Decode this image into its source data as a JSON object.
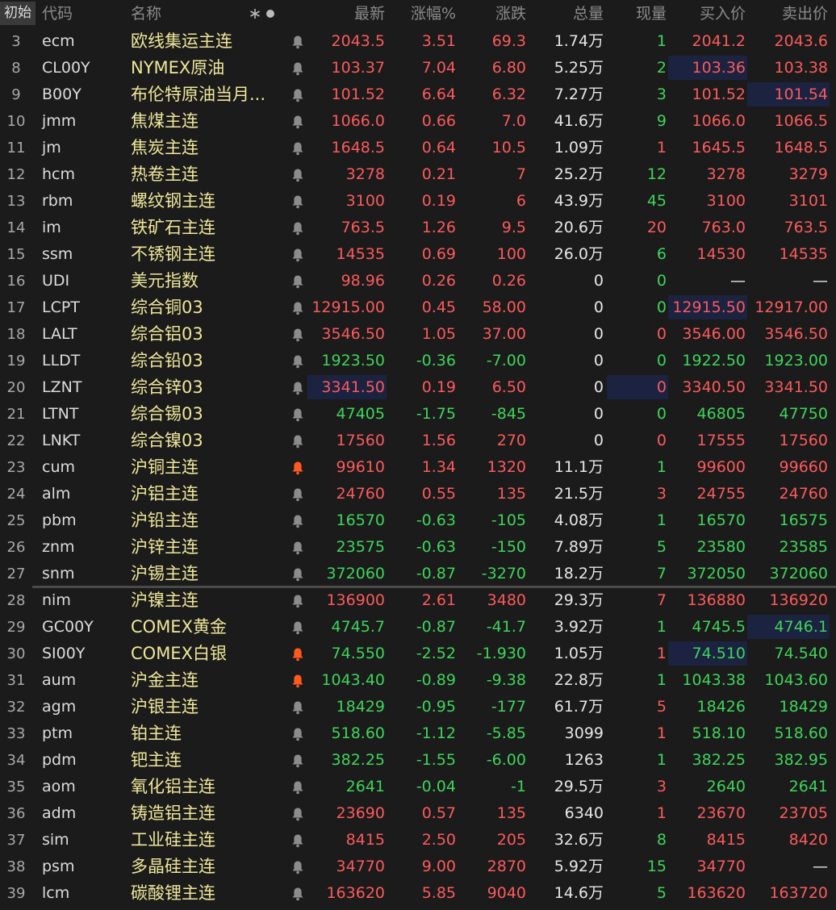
{
  "header": {
    "button": "初始",
    "columns": [
      "代码",
      "名称",
      "最新",
      "涨幅%",
      "涨跌",
      "总量",
      "现量",
      "买入价",
      "卖出价"
    ]
  },
  "rows": [
    {
      "index": "3",
      "code": "ecm",
      "name": "欧线集运主连",
      "last": "2043.5",
      "pct": "3.51",
      "chg": "69.3",
      "vol": "1.74万",
      "cur": "1",
      "bid": "2041.2",
      "ask": "2043.6",
      "color": "#fb5a5c",
      "cur_color": "#3ed45a",
      "alert": false,
      "highlight": []
    },
    {
      "index": "8",
      "code": "CL00Y",
      "name": "NYMEX原油",
      "last": "103.37",
      "pct": "7.04",
      "chg": "6.80",
      "vol": "5.25万",
      "cur": "2",
      "bid": "103.36",
      "ask": "103.38",
      "color": "#fb5a5c",
      "cur_color": "#3ed45a",
      "alert": false,
      "highlight": [
        "bid"
      ]
    },
    {
      "index": "9",
      "code": "B00Y",
      "name": "布伦特原油当月...",
      "last": "101.52",
      "pct": "6.64",
      "chg": "6.32",
      "vol": "7.27万",
      "cur": "3",
      "bid": "101.52",
      "ask": "101.54",
      "color": "#fb5a5c",
      "cur_color": "#3ed45a",
      "alert": false,
      "highlight": [
        "ask"
      ]
    },
    {
      "index": "10",
      "code": "jmm",
      "name": "焦煤主连",
      "last": "1066.0",
      "pct": "0.66",
      "chg": "7.0",
      "vol": "41.6万",
      "cur": "9",
      "bid": "1066.0",
      "ask": "1066.5",
      "color": "#fb5a5c",
      "cur_color": "#3ed45a",
      "alert": false,
      "highlight": []
    },
    {
      "index": "11",
      "code": "jm",
      "name": "焦炭主连",
      "last": "1648.5",
      "pct": "0.64",
      "chg": "10.5",
      "vol": "1.09万",
      "cur": "1",
      "bid": "1645.5",
      "ask": "1648.5",
      "color": "#fb5a5c",
      "cur_color": "#fb5a5c",
      "alert": false,
      "highlight": []
    },
    {
      "index": "12",
      "code": "hcm",
      "name": "热卷主连",
      "last": "3278",
      "pct": "0.21",
      "chg": "7",
      "vol": "25.2万",
      "cur": "12",
      "bid": "3278",
      "ask": "3279",
      "color": "#fb5a5c",
      "cur_color": "#3ed45a",
      "alert": false,
      "highlight": []
    },
    {
      "index": "13",
      "code": "rbm",
      "name": "螺纹钢主连",
      "last": "3100",
      "pct": "0.19",
      "chg": "6",
      "vol": "43.9万",
      "cur": "45",
      "bid": "3100",
      "ask": "3101",
      "color": "#fb5a5c",
      "cur_color": "#3ed45a",
      "alert": false,
      "highlight": []
    },
    {
      "index": "14",
      "code": "im",
      "name": "铁矿石主连",
      "last": "763.5",
      "pct": "1.26",
      "chg": "9.5",
      "vol": "20.6万",
      "cur": "20",
      "bid": "763.0",
      "ask": "763.5",
      "color": "#fb5a5c",
      "cur_color": "#fb5a5c",
      "alert": false,
      "highlight": []
    },
    {
      "index": "15",
      "code": "ssm",
      "name": "不锈钢主连",
      "last": "14535",
      "pct": "0.69",
      "chg": "100",
      "vol": "26.0万",
      "cur": "6",
      "bid": "14530",
      "ask": "14535",
      "color": "#fb5a5c",
      "cur_color": "#3ed45a",
      "alert": false,
      "highlight": []
    },
    {
      "index": "16",
      "code": "UDI",
      "name": "美元指数",
      "last": "98.96",
      "pct": "0.26",
      "chg": "0.26",
      "vol": "0",
      "cur": "0",
      "bid": "—",
      "ask": "—",
      "color": "#fb5a5c",
      "cur_color": "#3ed45a",
      "alert": false,
      "highlight": []
    },
    {
      "index": "17",
      "code": "LCPT",
      "name": "综合铜03",
      "last": "12915.00",
      "pct": "0.45",
      "chg": "58.00",
      "vol": "0",
      "cur": "0",
      "bid": "12915.50",
      "ask": "12917.00",
      "color": "#fb5a5c",
      "cur_color": "#3ed45a",
      "alert": false,
      "highlight": [
        "bid"
      ]
    },
    {
      "index": "18",
      "code": "LALT",
      "name": "综合铝03",
      "last": "3546.50",
      "pct": "1.05",
      "chg": "37.00",
      "vol": "0",
      "cur": "0",
      "bid": "3546.00",
      "ask": "3546.50",
      "color": "#fb5a5c",
      "cur_color": "#fb5a5c",
      "alert": false,
      "highlight": []
    },
    {
      "index": "19",
      "code": "LLDT",
      "name": "综合铅03",
      "last": "1923.50",
      "pct": "-0.36",
      "chg": "-7.00",
      "vol": "0",
      "cur": "0",
      "bid": "1922.50",
      "ask": "1923.00",
      "color": "#3ed45a",
      "cur_color": "#3ed45a",
      "alert": false,
      "highlight": []
    },
    {
      "index": "20",
      "code": "LZNT",
      "name": "综合锌03",
      "last": "3341.50",
      "pct": "0.19",
      "chg": "6.50",
      "vol": "0",
      "cur": "0",
      "bid": "3340.50",
      "ask": "3341.50",
      "color": "#fb5a5c",
      "cur_color": "#fb5a5c",
      "alert": false,
      "highlight": [
        "last",
        "cur"
      ]
    },
    {
      "index": "21",
      "code": "LTNT",
      "name": "综合锡03",
      "last": "47405",
      "pct": "-1.75",
      "chg": "-845",
      "vol": "0",
      "cur": "0",
      "bid": "46805",
      "ask": "47750",
      "color": "#3ed45a",
      "cur_color": "#3ed45a",
      "alert": false,
      "highlight": []
    },
    {
      "index": "22",
      "code": "LNKT",
      "name": "综合镍03",
      "last": "17560",
      "pct": "1.56",
      "chg": "270",
      "vol": "0",
      "cur": "0",
      "bid": "17555",
      "ask": "17560",
      "color": "#fb5a5c",
      "cur_color": "#fb5a5c",
      "alert": false,
      "highlight": []
    },
    {
      "index": "23",
      "code": "cum",
      "name": "沪铜主连",
      "last": "99610",
      "pct": "1.34",
      "chg": "1320",
      "vol": "11.1万",
      "cur": "1",
      "bid": "99600",
      "ask": "99660",
      "color": "#fb5a5c",
      "cur_color": "#3ed45a",
      "alert": true,
      "highlight": []
    },
    {
      "index": "24",
      "code": "alm",
      "name": "沪铝主连",
      "last": "24760",
      "pct": "0.55",
      "chg": "135",
      "vol": "21.5万",
      "cur": "3",
      "bid": "24755",
      "ask": "24760",
      "color": "#fb5a5c",
      "cur_color": "#fb5a5c",
      "alert": false,
      "highlight": []
    },
    {
      "index": "25",
      "code": "pbm",
      "name": "沪铅主连",
      "last": "16570",
      "pct": "-0.63",
      "chg": "-105",
      "vol": "4.08万",
      "cur": "1",
      "bid": "16570",
      "ask": "16575",
      "color": "#3ed45a",
      "cur_color": "#3ed45a",
      "alert": false,
      "highlight": []
    },
    {
      "index": "26",
      "code": "znm",
      "name": "沪锌主连",
      "last": "23575",
      "pct": "-0.63",
      "chg": "-150",
      "vol": "7.89万",
      "cur": "5",
      "bid": "23580",
      "ask": "23585",
      "color": "#3ed45a",
      "cur_color": "#3ed45a",
      "alert": false,
      "highlight": []
    },
    {
      "index": "27",
      "code": "snm",
      "name": "沪锡主连",
      "last": "372060",
      "pct": "-0.87",
      "chg": "-3270",
      "vol": "18.2万",
      "cur": "7",
      "bid": "372050",
      "ask": "372060",
      "color": "#3ed45a",
      "cur_color": "#3ed45a",
      "alert": false,
      "highlight": []
    },
    {
      "index": "28",
      "code": "nim",
      "name": "沪镍主连",
      "last": "136900",
      "pct": "2.61",
      "chg": "3480",
      "vol": "29.3万",
      "cur": "7",
      "bid": "136880",
      "ask": "136920",
      "color": "#fb5a5c",
      "cur_color": "#fb5a5c",
      "alert": false,
      "highlight": []
    },
    {
      "index": "29",
      "code": "GC00Y",
      "name": "COMEX黄金",
      "last": "4745.7",
      "pct": "-0.87",
      "chg": "-41.7",
      "vol": "3.92万",
      "cur": "1",
      "bid": "4745.5",
      "ask": "4746.1",
      "color": "#3ed45a",
      "cur_color": "#3ed45a",
      "alert": false,
      "highlight": [
        "ask"
      ]
    },
    {
      "index": "30",
      "code": "SI00Y",
      "name": "COMEX白银",
      "last": "74.550",
      "pct": "-2.52",
      "chg": "-1.930",
      "vol": "1.05万",
      "cur": "1",
      "bid": "74.510",
      "ask": "74.540",
      "color": "#3ed45a",
      "cur_color": "#fb5a5c",
      "alert": true,
      "highlight": [
        "bid"
      ]
    },
    {
      "index": "31",
      "code": "aum",
      "name": "沪金主连",
      "last": "1043.40",
      "pct": "-0.89",
      "chg": "-9.38",
      "vol": "22.8万",
      "cur": "1",
      "bid": "1043.38",
      "ask": "1043.60",
      "color": "#3ed45a",
      "cur_color": "#3ed45a",
      "alert": true,
      "highlight": []
    },
    {
      "index": "32",
      "code": "agm",
      "name": "沪银主连",
      "last": "18429",
      "pct": "-0.95",
      "chg": "-177",
      "vol": "61.7万",
      "cur": "5",
      "bid": "18426",
      "ask": "18429",
      "color": "#3ed45a",
      "cur_color": "#fb5a5c",
      "alert": false,
      "highlight": []
    },
    {
      "index": "33",
      "code": "ptm",
      "name": "铂主连",
      "last": "518.60",
      "pct": "-1.12",
      "chg": "-5.85",
      "vol": "3099",
      "cur": "1",
      "bid": "518.10",
      "ask": "518.60",
      "color": "#3ed45a",
      "cur_color": "#fb5a5c",
      "alert": false,
      "highlight": []
    },
    {
      "index": "34",
      "code": "pdm",
      "name": "钯主连",
      "last": "382.25",
      "pct": "-1.55",
      "chg": "-6.00",
      "vol": "1263",
      "cur": "1",
      "bid": "382.25",
      "ask": "382.95",
      "color": "#3ed45a",
      "cur_color": "#3ed45a",
      "alert": false,
      "highlight": []
    },
    {
      "index": "35",
      "code": "aom",
      "name": "氧化铝主连",
      "last": "2641",
      "pct": "-0.04",
      "chg": "-1",
      "vol": "29.5万",
      "cur": "3",
      "bid": "2640",
      "ask": "2641",
      "color": "#3ed45a",
      "cur_color": "#fb5a5c",
      "alert": false,
      "highlight": []
    },
    {
      "index": "36",
      "code": "adm",
      "name": "铸造铝主连",
      "last": "23690",
      "pct": "0.57",
      "chg": "135",
      "vol": "6340",
      "cur": "1",
      "bid": "23670",
      "ask": "23705",
      "color": "#fb5a5c",
      "cur_color": "#fb5a5c",
      "alert": false,
      "highlight": []
    },
    {
      "index": "37",
      "code": "sim",
      "name": "工业硅主连",
      "last": "8415",
      "pct": "2.50",
      "chg": "205",
      "vol": "32.6万",
      "cur": "8",
      "bid": "8415",
      "ask": "8420",
      "color": "#fb5a5c",
      "cur_color": "#3ed45a",
      "alert": false,
      "highlight": []
    },
    {
      "index": "38",
      "code": "psm",
      "name": "多晶硅主连",
      "last": "34770",
      "pct": "9.00",
      "chg": "2870",
      "vol": "5.92万",
      "cur": "15",
      "bid": "34770",
      "ask": "—",
      "color": "#fb5a5c",
      "cur_color": "#3ed45a",
      "alert": false,
      "highlight": []
    },
    {
      "index": "39",
      "code": "lcm",
      "name": "碳酸锂主连",
      "last": "163620",
      "pct": "5.85",
      "chg": "9040",
      "vol": "14.6万",
      "cur": "5",
      "bid": "163620",
      "ask": "163720",
      "color": "#fb5a5c",
      "cur_color": "#3ed45a",
      "alert": false,
      "highlight": []
    }
  ]
}
